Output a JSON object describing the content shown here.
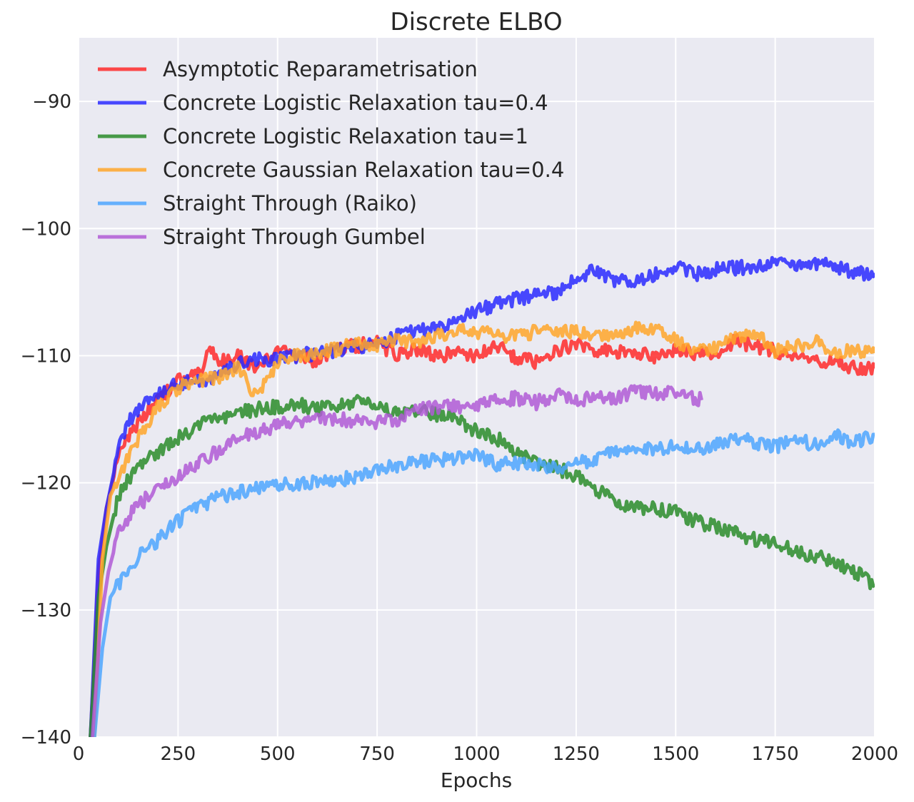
{
  "chart_data": {
    "type": "line",
    "title": "Discrete ELBO",
    "xlabel": "Epochs",
    "ylabel": "",
    "xlim": [
      0,
      2000
    ],
    "ylim": [
      -140,
      -85
    ],
    "xticks": [
      0,
      250,
      500,
      750,
      1000,
      1250,
      1500,
      1750,
      2000
    ],
    "yticks": [
      -140,
      -130,
      -120,
      -110,
      -100,
      -90
    ],
    "ytick_labels": [
      "−140",
      "−130",
      "−120",
      "−110",
      "−100",
      "−90"
    ],
    "grid": true,
    "legend_position": "top-left",
    "series": [
      {
        "name": "Asymptotic Reparametrisation",
        "color": "#ff2a2a",
        "x": [
          30,
          50,
          70,
          100,
          130,
          160,
          200,
          250,
          300,
          330,
          360,
          400,
          450,
          500,
          550,
          600,
          650,
          700,
          750,
          800,
          850,
          900,
          950,
          1000,
          1050,
          1100,
          1150,
          1200,
          1250,
          1300,
          1350,
          1400,
          1450,
          1500,
          1550,
          1600,
          1650,
          1700,
          1750,
          1800,
          1850,
          1900,
          1950,
          2000
        ],
        "y": [
          -140,
          -127,
          -122,
          -118,
          -116,
          -115,
          -113.5,
          -112,
          -111.5,
          -109.5,
          -110.5,
          -110,
          -111,
          -109.5,
          -110,
          -110.5,
          -109.5,
          -109.2,
          -109,
          -110,
          -109.5,
          -110,
          -109.8,
          -110,
          -109.2,
          -110.2,
          -110.5,
          -109.5,
          -109.2,
          -109.5,
          -109.8,
          -109.7,
          -110.2,
          -109.4,
          -109.8,
          -110,
          -108.8,
          -109.3,
          -109.6,
          -110,
          -110.4,
          -110.6,
          -110.9,
          -111
        ]
      },
      {
        "name": "Concrete Logistic Relaxation tau=0.4",
        "color": "#2a2aff",
        "x": [
          30,
          50,
          70,
          100,
          130,
          160,
          200,
          250,
          300,
          350,
          400,
          450,
          500,
          550,
          600,
          650,
          700,
          750,
          800,
          850,
          900,
          950,
          1000,
          1050,
          1100,
          1150,
          1200,
          1250,
          1300,
          1350,
          1400,
          1450,
          1500,
          1550,
          1600,
          1650,
          1700,
          1750,
          1800,
          1850,
          1900,
          1950,
          2000
        ],
        "y": [
          -140,
          -126,
          -122,
          -117.5,
          -115,
          -114,
          -113,
          -112.2,
          -112,
          -111.8,
          -110.5,
          -110.3,
          -110.2,
          -110,
          -109.8,
          -109.6,
          -109.3,
          -109,
          -108.5,
          -108,
          -107.8,
          -107.2,
          -106.5,
          -106,
          -105.5,
          -105.3,
          -105,
          -103.8,
          -103.3,
          -104.2,
          -104,
          -103.6,
          -103,
          -103.6,
          -103.2,
          -103.1,
          -103,
          -102.8,
          -102.9,
          -102.7,
          -103,
          -103.5,
          -103.5
        ]
      },
      {
        "name": "Concrete Logistic Relaxation tau=1",
        "color": "#2a8c2a",
        "x": [
          30,
          50,
          70,
          100,
          130,
          160,
          200,
          250,
          300,
          350,
          400,
          450,
          500,
          550,
          600,
          650,
          700,
          750,
          800,
          850,
          900,
          950,
          1000,
          1050,
          1100,
          1150,
          1200,
          1250,
          1300,
          1350,
          1400,
          1450,
          1500,
          1550,
          1600,
          1650,
          1700,
          1750,
          1800,
          1850,
          1900,
          1950,
          2000
        ],
        "y": [
          -140,
          -129,
          -125,
          -121,
          -119.5,
          -118.5,
          -117.5,
          -116.5,
          -115.5,
          -115,
          -114.5,
          -114.2,
          -114,
          -113.8,
          -114.2,
          -114,
          -113.5,
          -114,
          -114.5,
          -114.4,
          -114.6,
          -115,
          -116,
          -116.5,
          -117.5,
          -118.5,
          -118.8,
          -119.5,
          -120.5,
          -121.5,
          -122,
          -122,
          -122.3,
          -123,
          -123.5,
          -124,
          -124.5,
          -124.8,
          -125.3,
          -125.8,
          -126.2,
          -127,
          -128
        ]
      },
      {
        "name": "Concrete Gaussian Relaxation tau=0.4",
        "color": "#ffa62a",
        "x": [
          40,
          60,
          80,
          110,
          140,
          170,
          200,
          250,
          300,
          350,
          400,
          430,
          450,
          500,
          550,
          600,
          650,
          700,
          750,
          800,
          850,
          900,
          950,
          1000,
          1050,
          1100,
          1150,
          1200,
          1250,
          1300,
          1350,
          1400,
          1450,
          1500,
          1550,
          1600,
          1650,
          1700,
          1750,
          1800,
          1850,
          1900,
          1950,
          2000
        ],
        "y": [
          -140,
          -126,
          -121,
          -119,
          -117,
          -115.5,
          -114,
          -112.5,
          -112,
          -111.8,
          -111,
          -112.5,
          -113,
          -110.5,
          -110,
          -109.7,
          -109.5,
          -109,
          -109.2,
          -108.8,
          -109,
          -108.5,
          -108,
          -108.2,
          -108.3,
          -108.5,
          -108.1,
          -108,
          -108.2,
          -108.5,
          -108.3,
          -107.8,
          -108,
          -108.8,
          -109.5,
          -109.4,
          -108.6,
          -108.2,
          -109.6,
          -109.3,
          -108.9,
          -109.8,
          -109.5,
          -109.8
        ]
      },
      {
        "name": "Straight Through (Raiko)",
        "color": "#4da6ff",
        "x": [
          40,
          60,
          80,
          100,
          130,
          160,
          200,
          250,
          300,
          350,
          400,
          450,
          500,
          550,
          600,
          650,
          700,
          750,
          800,
          850,
          900,
          950,
          1000,
          1050,
          1100,
          1150,
          1200,
          1250,
          1300,
          1350,
          1400,
          1450,
          1500,
          1550,
          1600,
          1650,
          1700,
          1750,
          1800,
          1850,
          1900,
          1950,
          2000
        ],
        "y": [
          -140,
          -133,
          -129,
          -128,
          -127,
          -125.5,
          -124.5,
          -123,
          -122,
          -121.2,
          -120.8,
          -120.5,
          -120.3,
          -120,
          -120,
          -119.8,
          -119.5,
          -119,
          -118.6,
          -118.4,
          -118.2,
          -118,
          -117.8,
          -118.6,
          -118.4,
          -118.6,
          -118.8,
          -118.5,
          -118.1,
          -117.6,
          -117.2,
          -117.3,
          -117.2,
          -117.5,
          -117,
          -116.5,
          -116.8,
          -117.2,
          -116.6,
          -117,
          -116.3,
          -116.8,
          -116.2
        ]
      },
      {
        "name": "Straight Through Gumbel",
        "color": "#b05ad6",
        "x": [
          35,
          55,
          75,
          100,
          130,
          160,
          200,
          250,
          300,
          350,
          400,
          450,
          500,
          550,
          600,
          650,
          700,
          750,
          800,
          850,
          900,
          950,
          1000,
          1050,
          1100,
          1150,
          1200,
          1250,
          1300,
          1350,
          1400,
          1450,
          1500,
          1565
        ],
        "y": [
          -140,
          -131,
          -127,
          -124,
          -122.5,
          -121.5,
          -120.5,
          -119.5,
          -118.5,
          -117.5,
          -116.5,
          -116,
          -115.5,
          -115.2,
          -115,
          -115,
          -115.2,
          -115.3,
          -115,
          -114.3,
          -114,
          -114,
          -113.8,
          -113.6,
          -113.3,
          -113.7,
          -113,
          -113.6,
          -113.1,
          -113.3,
          -112.8,
          -112.9,
          -112.9,
          -113.5
        ]
      }
    ]
  }
}
